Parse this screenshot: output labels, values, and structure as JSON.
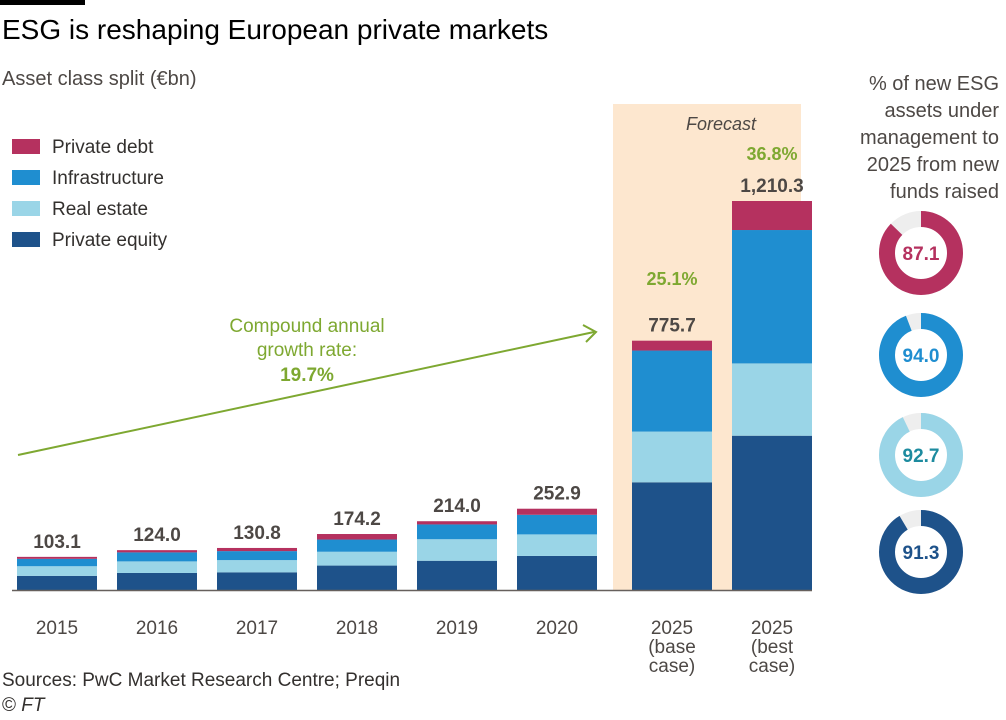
{
  "title": "ESG is reshaping European private markets",
  "subtitle": "Asset class split (€bn)",
  "sources": "Sources: PwC Market Research Centre; Preqin",
  "copyright": "©",
  "copyright_brand": "FT",
  "colors": {
    "private_debt": "#b5315f",
    "infrastructure": "#1f8ed0",
    "real_estate": "#9ad5e7",
    "private_equity": "#1e528a",
    "forecast_bg": "#fde7cf",
    "cagr_green": "#7ea831",
    "axis": "#66605c",
    "text": "#33302e"
  },
  "chart_data": {
    "type": "bar",
    "stacked": true,
    "categories": [
      [
        "2015"
      ],
      [
        "2016"
      ],
      [
        "2017"
      ],
      [
        "2018"
      ],
      [
        "2019"
      ],
      [
        "2020"
      ],
      [
        "2025",
        "(base",
        "case)"
      ],
      [
        "2025",
        "(best",
        "case)"
      ]
    ],
    "series": [
      {
        "key": "private_equity",
        "name": "Private equity",
        "values": [
          44,
          53,
          55,
          76,
          91,
          106,
          335,
          480
        ]
      },
      {
        "key": "real_estate",
        "name": "Real estate",
        "values": [
          30,
          36,
          38,
          43,
          67,
          67,
          158,
          225
        ]
      },
      {
        "key": "infrastructure",
        "name": "Infrastructure",
        "values": [
          23,
          28,
          28,
          38,
          46,
          61,
          252,
          415
        ]
      },
      {
        "key": "private_debt",
        "name": "Private debt",
        "values": [
          6.1,
          7,
          9.8,
          17.2,
          10,
          18.9,
          30.7,
          90.3
        ]
      }
    ],
    "totals": [
      "103.1",
      "124.0",
      "130.8",
      "174.2",
      "214.0",
      "252.9",
      "775.7",
      "1,210.3"
    ],
    "ylim": [
      0,
      1300
    ],
    "forecast_label": "Forecast",
    "forecast_categories": [
      6,
      7
    ],
    "legend": [
      "Private debt",
      "Infrastructure",
      "Real estate",
      "Private equity"
    ],
    "legend_position": "top-left",
    "annotation": {
      "lines": [
        "Compound annual",
        "growth rate:"
      ],
      "value": "19.7%"
    },
    "forecast_cagr": [
      "25.1%",
      "36.8%"
    ],
    "donuts": {
      "title": [
        "% of new ESG",
        "assets under",
        "management to",
        "2025 from new",
        "funds raised"
      ],
      "items": [
        {
          "key": "private_debt",
          "label": "87.1",
          "value": 87.1
        },
        {
          "key": "infrastructure",
          "label": "94.0",
          "value": 94.0
        },
        {
          "key": "real_estate",
          "label": "92.7",
          "value": 92.7
        },
        {
          "key": "private_equity",
          "label": "91.3",
          "value": 91.3
        }
      ]
    }
  }
}
